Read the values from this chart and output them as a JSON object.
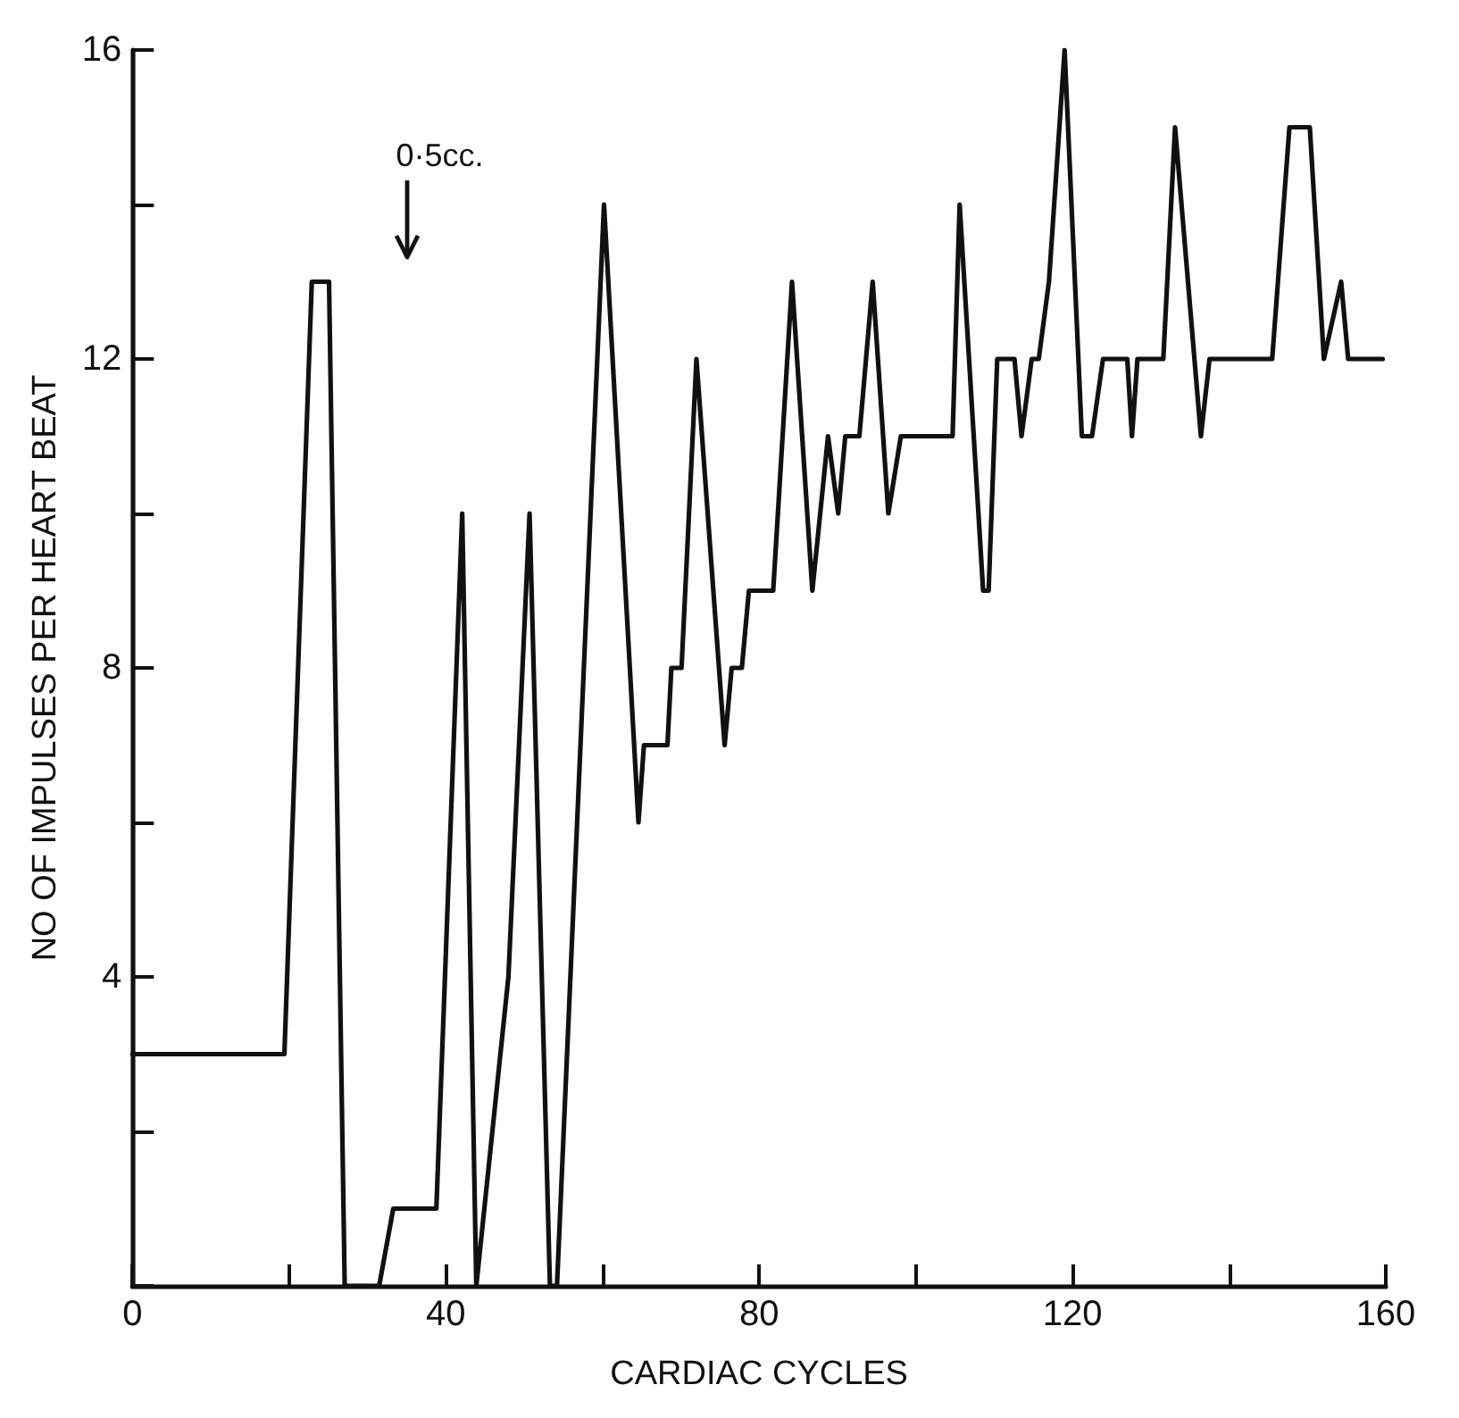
{
  "chart_data": {
    "type": "line",
    "xlabel": "CARDIAC CYCLES",
    "ylabel": "NO OF IMPULSES PER HEART BEAT",
    "annotations": [
      "0·5cc."
    ],
    "xlim": [
      0,
      160
    ],
    "xticks": [
      0,
      {
        "value": 20,
        "label": null
      },
      40,
      {
        "value": 60,
        "label": null
      },
      80,
      {
        "value": 100,
        "label": null
      },
      120,
      {
        "value": 140,
        "label": null
      },
      160
    ],
    "ylim": [
      0,
      16
    ],
    "yticks": [
      {
        "value": 0,
        "label": null
      },
      {
        "value": 2,
        "label": null
      },
      4,
      {
        "value": 6,
        "label": null
      },
      8,
      {
        "value": 10,
        "label": null
      },
      12,
      {
        "value": 14,
        "label": null
      },
      16
    ],
    "marker": "none",
    "line_style": "solid",
    "series": [
      {
        "color": "#111111",
        "x": [
          0,
          19.4,
          22.9,
          25.1,
          27.1,
          31.5,
          33.3,
          38.8,
          42.1,
          43.9,
          48,
          50.7,
          53.3,
          54.2,
          60.2,
          64.6,
          65.3,
          68.3,
          68.8,
          70.1,
          72,
          75.6,
          76.5,
          77.8,
          78.7,
          81.8,
          84.2,
          86.8,
          88.8,
          90.1,
          91,
          92.8,
          94.5,
          96.5,
          98.1,
          104.7,
          105.6,
          108.6,
          109.3,
          110.4,
          112.6,
          113.5,
          114.8,
          115.7,
          117,
          119,
          121.2,
          122.5,
          123.9,
          127,
          127.6,
          128.3,
          131.6,
          133.1,
          136.4,
          137.5,
          145.5,
          147.7,
          150.3,
          152.1,
          154.3,
          155.2,
          159.6
        ],
        "values": [
          3,
          3,
          13,
          13,
          0,
          0,
          1,
          1,
          10,
          0,
          4,
          10,
          0,
          0,
          14,
          6,
          7,
          7,
          8,
          8,
          12,
          7,
          8,
          8,
          9,
          9,
          13,
          9,
          11,
          10,
          11,
          11,
          13,
          10,
          11,
          11,
          14,
          9,
          9,
          12,
          12,
          11,
          12,
          12,
          13,
          16,
          11,
          11,
          12,
          12,
          11,
          12,
          12,
          15,
          11,
          12,
          12,
          15,
          15,
          12,
          13,
          12,
          12
        ]
      }
    ]
  }
}
